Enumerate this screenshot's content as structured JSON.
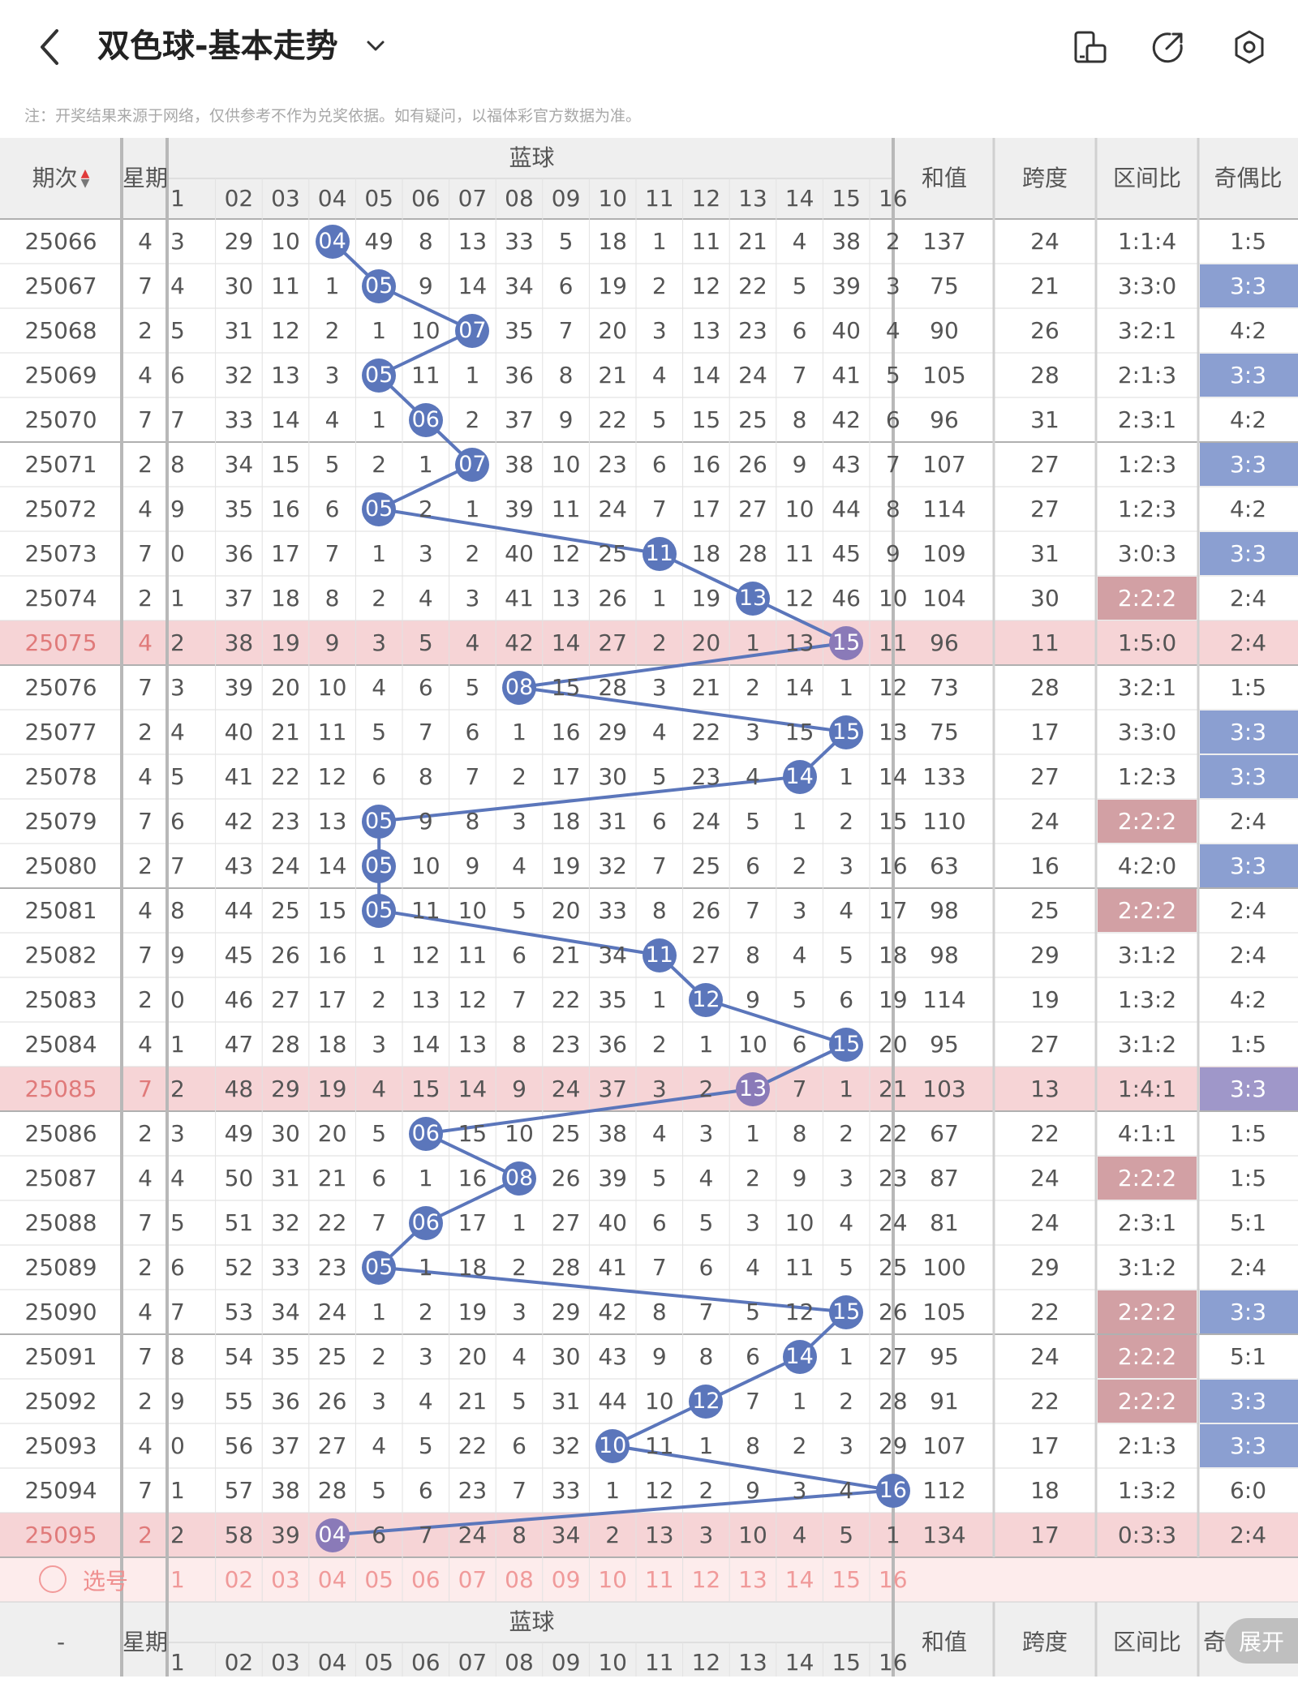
{
  "header": {
    "title": "双色球-基本走势",
    "icons": [
      "back-arrow-icon",
      "chevron-down-icon",
      "fold-screen-icon",
      "share-icon",
      "settings-icon"
    ]
  },
  "notice": "注：开奖结果来源于网络，仅供参考不作为兑奖依据。如有疑问，以福体彩官方数据为准。",
  "table": {
    "headers": {
      "period": "期次",
      "weekday": "星期",
      "blue": "蓝球",
      "sum": "和值",
      "span": "跨度",
      "zone_ratio": "区间比",
      "odd_even": "奇偶比"
    },
    "blue_columns": [
      "1",
      "02",
      "03",
      "04",
      "05",
      "06",
      "07",
      "08",
      "09",
      "10",
      "11",
      "12",
      "13",
      "14",
      "15",
      "16"
    ],
    "rows": [
      {
        "period": "25066",
        "weekday": "4",
        "misses": [
          "3",
          "29",
          "10",
          "04",
          "49",
          "8",
          "13",
          "33",
          "5",
          "18",
          "1",
          "11",
          "21",
          "4",
          "38",
          "2"
        ],
        "blue": 4,
        "sum": "137",
        "span": "24",
        "zone": "1:1:4",
        "oddeven": "1:5"
      },
      {
        "period": "25067",
        "weekday": "7",
        "misses": [
          "4",
          "30",
          "11",
          "1",
          "05",
          "9",
          "14",
          "34",
          "6",
          "19",
          "2",
          "12",
          "22",
          "5",
          "39",
          "3"
        ],
        "blue": 5,
        "sum": "75",
        "span": "21",
        "zone": "3:3:0",
        "oddeven": "3:3"
      },
      {
        "period": "25068",
        "weekday": "2",
        "misses": [
          "5",
          "31",
          "12",
          "2",
          "1",
          "10",
          "07",
          "35",
          "7",
          "20",
          "3",
          "13",
          "23",
          "6",
          "40",
          "4"
        ],
        "blue": 7,
        "sum": "90",
        "span": "26",
        "zone": "3:2:1",
        "oddeven": "4:2"
      },
      {
        "period": "25069",
        "weekday": "4",
        "misses": [
          "6",
          "32",
          "13",
          "3",
          "05",
          "11",
          "1",
          "36",
          "8",
          "21",
          "4",
          "14",
          "24",
          "7",
          "41",
          "5"
        ],
        "blue": 5,
        "sum": "105",
        "span": "28",
        "zone": "2:1:3",
        "oddeven": "3:3"
      },
      {
        "period": "25070",
        "weekday": "7",
        "misses": [
          "7",
          "33",
          "14",
          "4",
          "1",
          "06",
          "2",
          "37",
          "9",
          "22",
          "5",
          "15",
          "25",
          "8",
          "42",
          "6"
        ],
        "blue": 6,
        "sum": "96",
        "span": "31",
        "zone": "2:3:1",
        "oddeven": "4:2"
      },
      {
        "period": "25071",
        "weekday": "2",
        "misses": [
          "8",
          "34",
          "15",
          "5",
          "2",
          "1",
          "07",
          "38",
          "10",
          "23",
          "6",
          "16",
          "26",
          "9",
          "43",
          "7"
        ],
        "blue": 7,
        "sum": "107",
        "span": "27",
        "zone": "1:2:3",
        "oddeven": "3:3"
      },
      {
        "period": "25072",
        "weekday": "4",
        "misses": [
          "9",
          "35",
          "16",
          "6",
          "05",
          "2",
          "1",
          "39",
          "11",
          "24",
          "7",
          "17",
          "27",
          "10",
          "44",
          "8"
        ],
        "blue": 5,
        "sum": "114",
        "span": "27",
        "zone": "1:2:3",
        "oddeven": "4:2"
      },
      {
        "period": "25073",
        "weekday": "7",
        "misses": [
          "0",
          "36",
          "17",
          "7",
          "1",
          "3",
          "2",
          "40",
          "12",
          "25",
          "11",
          "18",
          "28",
          "11",
          "45",
          "9"
        ],
        "blue": 11,
        "sum": "109",
        "span": "31",
        "zone": "3:0:3",
        "oddeven": "3:3"
      },
      {
        "period": "25074",
        "weekday": "2",
        "misses": [
          "1",
          "37",
          "18",
          "8",
          "2",
          "4",
          "3",
          "41",
          "13",
          "26",
          "1",
          "19",
          "13",
          "12",
          "46",
          "10"
        ],
        "blue": 13,
        "sum": "104",
        "span": "30",
        "zone": "2:2:2",
        "oddeven": "2:4"
      },
      {
        "period": "25075",
        "weekday": "4",
        "misses": [
          "2",
          "38",
          "19",
          "9",
          "3",
          "5",
          "4",
          "42",
          "14",
          "27",
          "2",
          "20",
          "1",
          "13",
          "15",
          "11"
        ],
        "blue": 15,
        "sum": "96",
        "span": "11",
        "zone": "1:5:0",
        "oddeven": "2:4"
      },
      {
        "period": "25076",
        "weekday": "7",
        "misses": [
          "3",
          "39",
          "20",
          "10",
          "4",
          "6",
          "5",
          "08",
          "15",
          "28",
          "3",
          "21",
          "2",
          "14",
          "1",
          "12"
        ],
        "blue": 8,
        "sum": "73",
        "span": "28",
        "zone": "3:2:1",
        "oddeven": "1:5"
      },
      {
        "period": "25077",
        "weekday": "2",
        "misses": [
          "4",
          "40",
          "21",
          "11",
          "5",
          "7",
          "6",
          "1",
          "16",
          "29",
          "4",
          "22",
          "3",
          "15",
          "15",
          "13"
        ],
        "blue": 15,
        "sum": "75",
        "span": "17",
        "zone": "3:3:0",
        "oddeven": "3:3"
      },
      {
        "period": "25078",
        "weekday": "4",
        "misses": [
          "5",
          "41",
          "22",
          "12",
          "6",
          "8",
          "7",
          "2",
          "17",
          "30",
          "5",
          "23",
          "4",
          "14",
          "1",
          "14"
        ],
        "blue": 14,
        "sum": "133",
        "span": "27",
        "zone": "1:2:3",
        "oddeven": "3:3"
      },
      {
        "period": "25079",
        "weekday": "7",
        "misses": [
          "6",
          "42",
          "23",
          "13",
          "05",
          "9",
          "8",
          "3",
          "18",
          "31",
          "6",
          "24",
          "5",
          "1",
          "2",
          "15"
        ],
        "blue": 5,
        "sum": "110",
        "span": "24",
        "zone": "2:2:2",
        "oddeven": "2:4"
      },
      {
        "period": "25080",
        "weekday": "2",
        "misses": [
          "7",
          "43",
          "24",
          "14",
          "05",
          "10",
          "9",
          "4",
          "19",
          "32",
          "7",
          "25",
          "6",
          "2",
          "3",
          "16"
        ],
        "blue": 5,
        "sum": "63",
        "span": "16",
        "zone": "4:2:0",
        "oddeven": "3:3"
      },
      {
        "period": "25081",
        "weekday": "4",
        "misses": [
          "8",
          "44",
          "25",
          "15",
          "05",
          "11",
          "10",
          "5",
          "20",
          "33",
          "8",
          "26",
          "7",
          "3",
          "4",
          "17"
        ],
        "blue": 5,
        "sum": "98",
        "span": "25",
        "zone": "2:2:2",
        "oddeven": "2:4"
      },
      {
        "period": "25082",
        "weekday": "7",
        "misses": [
          "9",
          "45",
          "26",
          "16",
          "1",
          "12",
          "11",
          "6",
          "21",
          "34",
          "11",
          "27",
          "8",
          "4",
          "5",
          "18"
        ],
        "blue": 11,
        "sum": "98",
        "span": "29",
        "zone": "3:1:2",
        "oddeven": "2:4"
      },
      {
        "period": "25083",
        "weekday": "2",
        "misses": [
          "0",
          "46",
          "27",
          "17",
          "2",
          "13",
          "12",
          "7",
          "22",
          "35",
          "1",
          "12",
          "9",
          "5",
          "6",
          "19"
        ],
        "blue": 12,
        "sum": "114",
        "span": "19",
        "zone": "1:3:2",
        "oddeven": "4:2"
      },
      {
        "period": "25084",
        "weekday": "4",
        "misses": [
          "1",
          "47",
          "28",
          "18",
          "3",
          "14",
          "13",
          "8",
          "23",
          "36",
          "2",
          "1",
          "10",
          "6",
          "15",
          "20"
        ],
        "blue": 15,
        "sum": "95",
        "span": "27",
        "zone": "3:1:2",
        "oddeven": "1:5"
      },
      {
        "period": "25085",
        "weekday": "7",
        "misses": [
          "2",
          "48",
          "29",
          "19",
          "4",
          "15",
          "14",
          "9",
          "24",
          "37",
          "3",
          "2",
          "13",
          "7",
          "1",
          "21"
        ],
        "blue": 13,
        "sum": "103",
        "span": "13",
        "zone": "1:4:1",
        "oddeven": "3:3"
      },
      {
        "period": "25086",
        "weekday": "2",
        "misses": [
          "3",
          "49",
          "30",
          "20",
          "5",
          "06",
          "15",
          "10",
          "25",
          "38",
          "4",
          "3",
          "1",
          "8",
          "2",
          "22"
        ],
        "blue": 6,
        "sum": "67",
        "span": "22",
        "zone": "4:1:1",
        "oddeven": "1:5"
      },
      {
        "period": "25087",
        "weekday": "4",
        "misses": [
          "4",
          "50",
          "31",
          "21",
          "6",
          "1",
          "16",
          "08",
          "26",
          "39",
          "5",
          "4",
          "2",
          "9",
          "3",
          "23"
        ],
        "blue": 8,
        "sum": "87",
        "span": "24",
        "zone": "2:2:2",
        "oddeven": "1:5"
      },
      {
        "period": "25088",
        "weekday": "7",
        "misses": [
          "5",
          "51",
          "32",
          "22",
          "7",
          "06",
          "17",
          "1",
          "27",
          "40",
          "6",
          "5",
          "3",
          "10",
          "4",
          "24"
        ],
        "blue": 6,
        "sum": "81",
        "span": "24",
        "zone": "2:3:1",
        "oddeven": "5:1"
      },
      {
        "period": "25089",
        "weekday": "2",
        "misses": [
          "6",
          "52",
          "33",
          "23",
          "05",
          "1",
          "18",
          "2",
          "28",
          "41",
          "7",
          "6",
          "4",
          "11",
          "5",
          "25"
        ],
        "blue": 5,
        "sum": "100",
        "span": "29",
        "zone": "3:1:2",
        "oddeven": "2:4"
      },
      {
        "period": "25090",
        "weekday": "4",
        "misses": [
          "7",
          "53",
          "34",
          "24",
          "1",
          "2",
          "19",
          "3",
          "29",
          "42",
          "8",
          "7",
          "5",
          "12",
          "15",
          "26"
        ],
        "blue": 15,
        "sum": "105",
        "span": "22",
        "zone": "2:2:2",
        "oddeven": "3:3"
      },
      {
        "period": "25091",
        "weekday": "7",
        "misses": [
          "8",
          "54",
          "35",
          "25",
          "2",
          "3",
          "20",
          "4",
          "30",
          "43",
          "9",
          "8",
          "6",
          "14",
          "1",
          "27"
        ],
        "blue": 14,
        "sum": "95",
        "span": "24",
        "zone": "2:2:2",
        "oddeven": "5:1"
      },
      {
        "period": "25092",
        "weekday": "2",
        "misses": [
          "9",
          "55",
          "36",
          "26",
          "3",
          "4",
          "21",
          "5",
          "31",
          "44",
          "10",
          "12",
          "7",
          "1",
          "2",
          "28"
        ],
        "blue": 12,
        "sum": "91",
        "span": "22",
        "zone": "2:2:2",
        "oddeven": "3:3"
      },
      {
        "period": "25093",
        "weekday": "4",
        "misses": [
          "0",
          "56",
          "37",
          "27",
          "4",
          "5",
          "22",
          "6",
          "32",
          "10",
          "11",
          "1",
          "8",
          "2",
          "3",
          "29"
        ],
        "blue": 10,
        "sum": "107",
        "span": "17",
        "zone": "2:1:3",
        "oddeven": "3:3"
      },
      {
        "period": "25094",
        "weekday": "7",
        "misses": [
          "1",
          "57",
          "38",
          "28",
          "5",
          "6",
          "23",
          "7",
          "33",
          "1",
          "12",
          "2",
          "9",
          "3",
          "4",
          "16"
        ],
        "blue": 16,
        "sum": "112",
        "span": "18",
        "zone": "1:3:2",
        "oddeven": "6:0"
      },
      {
        "period": "25095",
        "weekday": "2",
        "misses": [
          "2",
          "58",
          "39",
          "04",
          "6",
          "7",
          "24",
          "8",
          "34",
          "2",
          "13",
          "3",
          "10",
          "4",
          "5",
          "1"
        ],
        "blue": 4,
        "sum": "134",
        "span": "17",
        "zone": "0:3:3",
        "oddeven": "2:4"
      }
    ],
    "highlight_rows": [
      "25075",
      "25085",
      "25095"
    ],
    "select_label": "选号",
    "footer": {
      "period": "-"
    }
  },
  "expand_label": "展开",
  "colors": {
    "ball": "#5b76bb",
    "line": "#5b76bb",
    "highlight_row": "#f6d4d6",
    "zone_222": "#d2a0a4",
    "odd_33": "#8b9fd1",
    "header_bg": "#efefef",
    "select_row": "#fdecec"
  }
}
